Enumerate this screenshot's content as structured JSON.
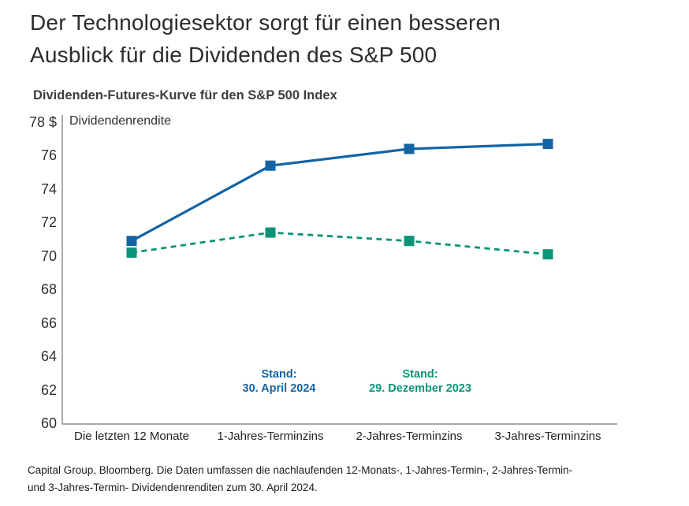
{
  "page": {
    "title_line1": "Der Technologiesektor sorgt für einen besseren",
    "title_line2": "Ausblick für die Dividenden des S&P 500",
    "footer_line1": "Capital Group, Bloomberg. Die Daten umfassen die nachlaufenden 12-Monats-, 1-Jahres-Termin-, 2-Jahres-Termin-",
    "footer_line2": "und 3-Jahres-Termin- Dividendenrenditen zum 30. April 2024."
  },
  "colors": {
    "series_blue": "#1464a4",
    "series_green": "#0b9478",
    "axis_gray": "#9b9b9b"
  },
  "chart_data": {
    "type": "line",
    "title": "Dividenden-Futures-Kurve für den S&P 500 Index",
    "ylabel": "Dividendenrendite",
    "xlabel": "",
    "y_unit": "$",
    "categories": [
      "Die letzten 12 Monate",
      "1-Jahres-Terminzins",
      "2-Jahres-Terminzins",
      "3-Jahres-Terminzins"
    ],
    "ylim": [
      60,
      78
    ],
    "y_ticks": [
      78,
      76,
      74,
      72,
      70,
      68,
      66,
      64,
      62,
      60
    ],
    "y_tick_labels": [
      "78 $",
      "76",
      "74",
      "72",
      "70",
      "68",
      "66",
      "64",
      "62",
      "60"
    ],
    "grid": false,
    "legend_position": "inline-annotations",
    "series": [
      {
        "name": "Stand: 30. April 2024",
        "color": "#1464a4",
        "line_style": "solid",
        "marker": "square",
        "values": [
          70.9,
          75.4,
          76.4,
          76.7
        ]
      },
      {
        "name": "Stand: 29. Dezember 2023",
        "color": "#0b9478",
        "line_style": "dashed",
        "marker": "square",
        "values": [
          70.2,
          71.4,
          70.9,
          70.1
        ]
      }
    ],
    "annotations": [
      {
        "lines": [
          "Stand:",
          "30. April 2024"
        ],
        "color": "#1464a4"
      },
      {
        "lines": [
          "Stand:",
          "29. Dezember 2023"
        ],
        "color": "#0b9478"
      }
    ]
  }
}
